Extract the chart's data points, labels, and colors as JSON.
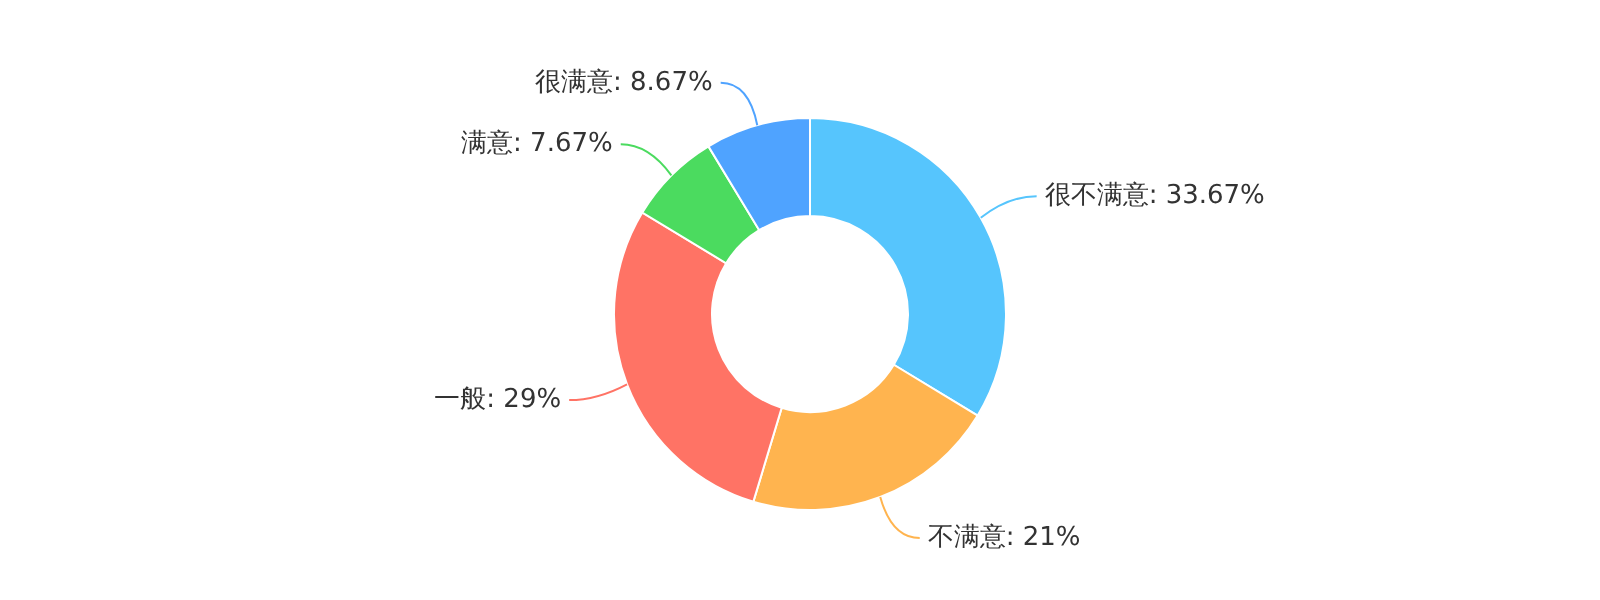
{
  "chart_data": {
    "type": "donut",
    "categories": [
      "很不满意",
      "不满意",
      "一般",
      "满意",
      "很满意"
    ],
    "values": [
      33.67,
      21,
      29,
      7.67,
      8.67
    ],
    "value_labels": [
      "33.67%",
      "21%",
      "29%",
      "7.67%",
      "8.67%"
    ],
    "colors": [
      "#56c5fd",
      "#ffb44f",
      "#ff7365",
      "#4bdb5f",
      "#4fa3ff"
    ],
    "legend": false
  }
}
